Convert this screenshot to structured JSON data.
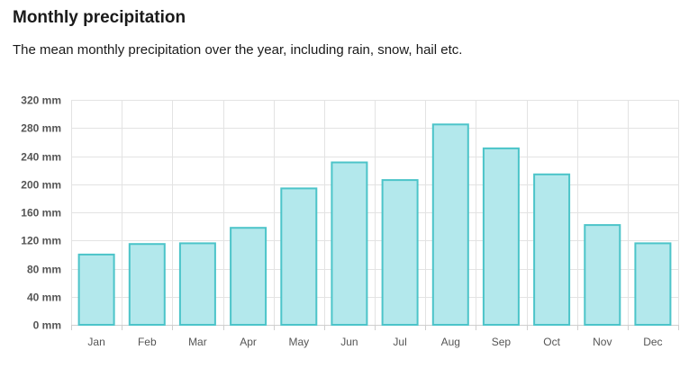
{
  "page": {
    "title": "Monthly precipitation",
    "subtitle": "The mean monthly precipitation over the year, including rain, snow, hail etc."
  },
  "colors": {
    "bar_fill": "#b3e8ec",
    "bar_stroke": "#4cc4c9",
    "grid": "#e3e3e3",
    "axis": "#cfcfcf",
    "tick_text": "#555555"
  },
  "chart_data": {
    "type": "bar",
    "categories": [
      "Jan",
      "Feb",
      "Mar",
      "Apr",
      "May",
      "Jun",
      "Jul",
      "Aug",
      "Sep",
      "Oct",
      "Nov",
      "Dec"
    ],
    "values": [
      100,
      115,
      116,
      138,
      194,
      231,
      206,
      285,
      251,
      214,
      142,
      116
    ],
    "ylim": [
      0,
      320
    ],
    "yticks": [
      0,
      40,
      80,
      120,
      160,
      200,
      240,
      280,
      320
    ],
    "ytick_labels": [
      "0 mm",
      "40 mm",
      "80 mm",
      "120 mm",
      "160 mm",
      "200 mm",
      "240 mm",
      "280 mm",
      "320 mm"
    ],
    "unit": "mm",
    "grid": true,
    "legend": "none"
  }
}
